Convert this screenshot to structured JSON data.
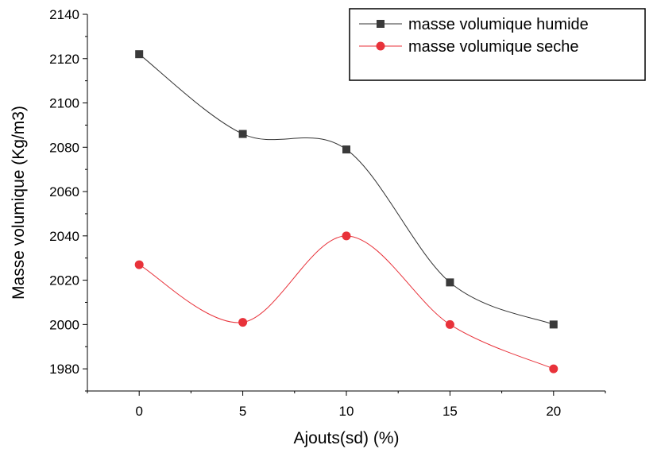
{
  "chart_data": {
    "type": "line",
    "title": "",
    "xlabel": "Ajouts(sd) (%)",
    "ylabel": "Masse volumique (Kg/m3)",
    "x": [
      0,
      5,
      10,
      15,
      20
    ],
    "xlim": [
      -2.5,
      22.5
    ],
    "ylim": [
      1970,
      2140
    ],
    "xticks": [
      0,
      5,
      10,
      15,
      20
    ],
    "yticks": [
      1980,
      2000,
      2020,
      2040,
      2060,
      2080,
      2100,
      2120,
      2140
    ],
    "legend_position": "top-right",
    "grid": false,
    "series": [
      {
        "name": "masse volumique humide",
        "values": [
          2122,
          2086,
          2079,
          2019,
          2000
        ],
        "color": "#333333",
        "marker": "square"
      },
      {
        "name": "masse volumique seche",
        "values": [
          2027,
          2001,
          2040,
          2000,
          1980
        ],
        "color": "#e8323a",
        "marker": "circle"
      }
    ]
  }
}
